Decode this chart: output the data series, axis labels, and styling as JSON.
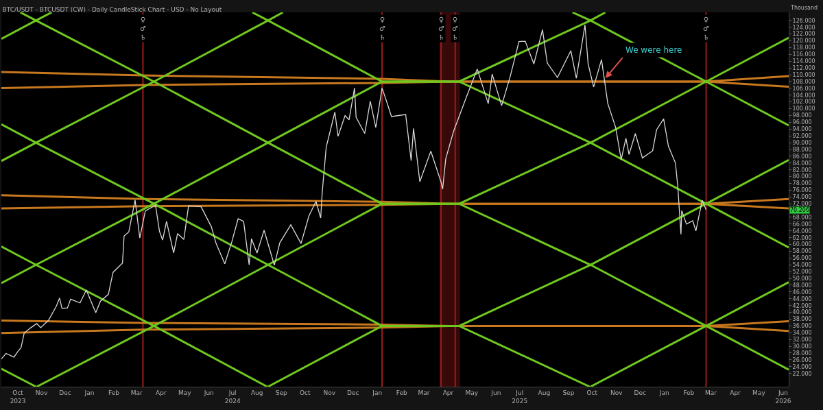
{
  "chart_data": {
    "type": "line",
    "title": "BTC/USDT - BTCUSDT (CW) - Daily CandleStick Chart - USD - No Layout",
    "ylabel": "Thousand",
    "xlim": [
      "2023-09-25",
      "2026-06-22"
    ],
    "ylim": [
      18.1,
      128.4
    ],
    "xticks": [
      {
        "value": "2023-10-16",
        "label": "Oct\n2023"
      },
      {
        "value": "2023-11-15",
        "label": "Nov"
      },
      {
        "value": "2023-12-15",
        "label": "Dec"
      },
      {
        "value": "2024-01-15",
        "label": "Jan"
      },
      {
        "value": "2024-02-15",
        "label": "Feb"
      },
      {
        "value": "2024-03-15",
        "label": "Mar"
      },
      {
        "value": "2024-04-15",
        "label": "Apr"
      },
      {
        "value": "2024-05-15",
        "label": "May"
      },
      {
        "value": "2024-06-15",
        "label": "Jun"
      },
      {
        "value": "2024-07-15",
        "label": "Jul\n2024"
      },
      {
        "value": "2024-08-15",
        "label": "Aug"
      },
      {
        "value": "2024-09-15",
        "label": "Sep"
      },
      {
        "value": "2024-10-15",
        "label": "Oct"
      },
      {
        "value": "2024-11-15",
        "label": "Nov"
      },
      {
        "value": "2024-12-15",
        "label": "Dec"
      },
      {
        "value": "2025-01-15",
        "label": "Jan"
      },
      {
        "value": "2025-02-15",
        "label": "Feb"
      },
      {
        "value": "2025-03-15",
        "label": "Mar"
      },
      {
        "value": "2025-04-15",
        "label": "Apr"
      },
      {
        "value": "2025-05-15",
        "label": "May"
      },
      {
        "value": "2025-06-15",
        "label": "Jun"
      },
      {
        "value": "2025-07-15",
        "label": "Jul\n2025"
      },
      {
        "value": "2025-08-15",
        "label": "Aug"
      },
      {
        "value": "2025-09-15",
        "label": "Sep"
      },
      {
        "value": "2025-10-15",
        "label": "Oct"
      },
      {
        "value": "2025-11-15",
        "label": "Nov"
      },
      {
        "value": "2025-12-15",
        "label": "Dec"
      },
      {
        "value": "2026-01-15",
        "label": "Jan"
      },
      {
        "value": "2026-02-15",
        "label": "Feb"
      },
      {
        "value": "2026-03-15",
        "label": "Mar"
      },
      {
        "value": "2026-04-15",
        "label": "Apr"
      },
      {
        "value": "2026-05-15",
        "label": "May"
      },
      {
        "value": "2026-06-15",
        "label": "Jun\n2026"
      }
    ],
    "yticks": [
      {
        "value": 22,
        "label": "22.000"
      },
      {
        "value": 24,
        "label": "24.000"
      },
      {
        "value": 26,
        "label": "26.000"
      },
      {
        "value": 28,
        "label": "28.000"
      },
      {
        "value": 30,
        "label": "30.000"
      },
      {
        "value": 32,
        "label": "32.000"
      },
      {
        "value": 34,
        "label": "34.000"
      },
      {
        "value": 36,
        "label": "36.000"
      },
      {
        "value": 38,
        "label": "38.000"
      },
      {
        "value": 40,
        "label": "40.000"
      },
      {
        "value": 42,
        "label": "42.000"
      },
      {
        "value": 44,
        "label": "44.000"
      },
      {
        "value": 46,
        "label": "46.000"
      },
      {
        "value": 48,
        "label": "48.000"
      },
      {
        "value": 50,
        "label": "50.000"
      },
      {
        "value": 52,
        "label": "52.000"
      },
      {
        "value": 54,
        "label": "54.000"
      },
      {
        "value": 56,
        "label": "56.000"
      },
      {
        "value": 58,
        "label": "58.000"
      },
      {
        "value": 60,
        "label": "60.000"
      },
      {
        "value": 62,
        "label": "62.000"
      },
      {
        "value": 64,
        "label": "64.000"
      },
      {
        "value": 66,
        "label": "66.000"
      },
      {
        "value": 68,
        "label": "68.000"
      },
      {
        "value": 70,
        "label": null
      },
      {
        "value": 72,
        "label": "72.000"
      },
      {
        "value": 74,
        "label": "74.000"
      },
      {
        "value": 76,
        "label": "76.000"
      },
      {
        "value": 78,
        "label": "78.000"
      },
      {
        "value": 80,
        "label": "80.000"
      },
      {
        "value": 82,
        "label": "82.000"
      },
      {
        "value": 84,
        "label": "84.000"
      },
      {
        "value": 86,
        "label": "86.000"
      },
      {
        "value": 88,
        "label": "88.000"
      },
      {
        "value": 90,
        "label": "90.000"
      },
      {
        "value": 92,
        "label": "92.000"
      },
      {
        "value": 94,
        "label": "94.000"
      },
      {
        "value": 96,
        "label": "96.000"
      },
      {
        "value": 98,
        "label": "98.000"
      },
      {
        "value": 100,
        "label": "100.000"
      },
      {
        "value": 102,
        "label": "102.000"
      },
      {
        "value": 104,
        "label": "104.000"
      },
      {
        "value": 106,
        "label": "106.000"
      },
      {
        "value": 108,
        "label": "108.000"
      },
      {
        "value": 110,
        "label": "110.000"
      },
      {
        "value": 112,
        "label": "112.000"
      },
      {
        "value": 114,
        "label": "114.000"
      },
      {
        "value": 116,
        "label": "116.000"
      },
      {
        "value": 118,
        "label": "118.000"
      },
      {
        "value": 120,
        "label": "120.000"
      },
      {
        "value": 122,
        "label": "122.000"
      },
      {
        "value": 124,
        "label": "124.000"
      },
      {
        "value": 126,
        "label": "126.000"
      }
    ],
    "series": [
      {
        "color": "#d9d9d9",
        "x": [
          "2023-09-25",
          "2023-10-01",
          "2023-10-11",
          "2023-10-16",
          "2023-10-20",
          "2023-10-24",
          "2023-11-01",
          "2023-11-09",
          "2023-11-14",
          "2023-11-24",
          "2023-12-04",
          "2023-12-08",
          "2023-12-11",
          "2023-12-18",
          "2023-12-22",
          "2024-01-03",
          "2024-01-11",
          "2024-01-23",
          "2024-01-29",
          "2024-02-08",
          "2024-02-14",
          "2024-02-26",
          "2024-02-28",
          "2024-03-05",
          "2024-03-13",
          "2024-03-19",
          "2024-03-26",
          "2024-04-08",
          "2024-04-13",
          "2024-04-17",
          "2024-04-22",
          "2024-05-01",
          "2024-05-06",
          "2024-05-14",
          "2024-05-20",
          "2024-06-05",
          "2024-06-18",
          "2024-06-24",
          "2024-07-05",
          "2024-07-14",
          "2024-07-22",
          "2024-07-29",
          "2024-08-05",
          "2024-08-08",
          "2024-08-15",
          "2024-08-24",
          "2024-09-06",
          "2024-09-13",
          "2024-09-27",
          "2024-10-10",
          "2024-10-20",
          "2024-10-29",
          "2024-11-04",
          "2024-11-06",
          "2024-11-11",
          "2024-11-22",
          "2024-11-26",
          "2024-12-05",
          "2024-12-10",
          "2024-12-17",
          "2024-12-19",
          "2024-12-30",
          "2025-01-06",
          "2025-01-13",
          "2025-01-21",
          "2025-01-27",
          "2025-02-02",
          "2025-02-20",
          "2025-02-27",
          "2025-03-02",
          "2025-03-10",
          "2025-03-24",
          "2025-04-06",
          "2025-04-08",
          "2025-04-12",
          "2025-04-22",
          "2025-05-08",
          "2025-05-22",
          "2025-06-05",
          "2025-06-10",
          "2025-06-22",
          "2025-07-03",
          "2025-07-10",
          "2025-07-14",
          "2025-07-22",
          "2025-08-02",
          "2025-08-13",
          "2025-08-19",
          "2025-09-01",
          "2025-09-18",
          "2025-09-25",
          "2025-10-06",
          "2025-10-10",
          "2025-10-17",
          "2025-10-27",
          "2025-11-04",
          "2025-11-14",
          "2025-11-21",
          "2025-11-27",
          "2025-12-01",
          "2025-12-09",
          "2025-12-18",
          "2025-12-31",
          "2026-01-05",
          "2026-01-14",
          "2026-01-20",
          "2026-01-29",
          "2026-02-01",
          "2026-02-05",
          "2026-02-06",
          "2026-02-12",
          "2026-02-20",
          "2026-02-24",
          "2026-03-04",
          "2026-03-09"
        ],
        "values": [
          26.3,
          27.9,
          26.8,
          28.5,
          29.6,
          33.9,
          35.4,
          36.7,
          35.5,
          37.7,
          41.9,
          44.2,
          41.2,
          41.3,
          43.9,
          42.8,
          46.6,
          39.9,
          43.3,
          45.3,
          51.8,
          54.5,
          62.5,
          63.7,
          73.1,
          61.9,
          69.9,
          71.6,
          63.9,
          61.3,
          66.8,
          57.5,
          63.2,
          61.5,
          71.4,
          71.1,
          65.2,
          60.3,
          54.3,
          60.8,
          67.6,
          66.8,
          54.0,
          61.7,
          57.5,
          64.2,
          53.9,
          60.5,
          65.8,
          60.3,
          68.4,
          72.7,
          67.8,
          75.6,
          88.7,
          99.0,
          91.9,
          98.0,
          96.7,
          106.1,
          97.5,
          92.7,
          102.2,
          94.5,
          106.1,
          102.0,
          97.7,
          98.3,
          84.7,
          94.2,
          78.5,
          87.5,
          78.4,
          76.3,
          85.3,
          93.4,
          103.3,
          111.7,
          101.5,
          110.2,
          100.9,
          109.6,
          116.0,
          119.8,
          119.9,
          113.2,
          123.3,
          113.5,
          109.2,
          117.1,
          109.0,
          124.7,
          113.2,
          106.4,
          114.5,
          101.5,
          94.5,
          85.0,
          91.3,
          86.5,
          92.7,
          85.5,
          87.6,
          93.8,
          97.0,
          89.0,
          84.0,
          77.0,
          63.0,
          70.0,
          66.0,
          67.0,
          64.0,
          73.0,
          70.2
        ]
      },
      {
        "color": "#c8781e",
        "x": [
          "2023-09-25",
          "2024-03-23",
          "2025-01-21",
          "2025-04-17",
          "2026-03-09",
          "2026-06-22"
        ],
        "values": [
          110.8,
          109.8,
          108.8,
          108.0,
          108.0,
          109.6
        ]
      },
      {
        "color": "#c8781e",
        "x": [
          "2023-09-25",
          "2024-03-23",
          "2025-01-21",
          "2025-04-17",
          "2026-03-09",
          "2026-06-22"
        ],
        "values": [
          106.1,
          107.0,
          107.6,
          108.0,
          108.0,
          106.5
        ]
      },
      {
        "color": "#c8781e",
        "x": [
          "2023-09-25",
          "2024-03-23",
          "2025-01-21",
          "2025-04-17",
          "2026-03-09",
          "2026-06-22"
        ],
        "values": [
          74.5,
          73.4,
          72.6,
          72.0,
          72.0,
          73.4
        ]
      },
      {
        "color": "#c8781e",
        "x": [
          "2023-09-25",
          "2024-03-23",
          "2025-01-21",
          "2025-04-17",
          "2026-03-09",
          "2026-06-22"
        ],
        "values": [
          70.6,
          71.3,
          71.7,
          72.0,
          72.0,
          70.6
        ]
      },
      {
        "color": "#c8781e",
        "x": [
          "2023-09-25",
          "2024-03-23",
          "2025-01-21",
          "2025-04-17",
          "2026-03-09",
          "2026-06-22"
        ],
        "values": [
          37.6,
          36.9,
          36.4,
          36.0,
          36.0,
          37.4
        ]
      },
      {
        "color": "#c8781e",
        "x": [
          "2023-09-25",
          "2024-03-23",
          "2025-01-21",
          "2025-04-17",
          "2026-03-09",
          "2026-06-22"
        ],
        "values": [
          33.9,
          34.9,
          35.5,
          36.0,
          36.0,
          34.5
        ]
      },
      {
        "color": "#6fc81e",
        "x": [
          "2025-09-20",
          "2025-10-13",
          "2026-03-09",
          "2026-06-22"
        ],
        "values": [
          128.4,
          126,
          108,
          95.1
        ]
      },
      {
        "color": "#6fc81e",
        "x": [
          "2024-08-09",
          "2024-08-29",
          "2025-01-21",
          "2025-04-29",
          "2025-10-13",
          "2026-03-09",
          "2026-06-22"
        ],
        "values": [
          128.4,
          126,
          108,
          108,
          90,
          72,
          59.1
        ]
      },
      {
        "color": "#6fc81e",
        "x": [
          "2023-10-19",
          "2023-11-08",
          "2024-04-06",
          "2024-08-29",
          "2025-01-21",
          "2025-04-29",
          "2025-10-13",
          "2026-03-09",
          "2026-06-22"
        ],
        "values": [
          128.4,
          126,
          108,
          90,
          72,
          72,
          54,
          36,
          23.1
        ]
      },
      {
        "color": "#6fc81e",
        "x": [
          "2023-09-25",
          "2023-11-08",
          "2024-04-06",
          "2024-08-29",
          "2025-01-21",
          "2025-04-29",
          "2025-10-12"
        ],
        "values": [
          95.4,
          90,
          72,
          54,
          36,
          36,
          18.1
        ]
      },
      {
        "color": "#6fc81e",
        "x": [
          "2023-09-25",
          "2023-11-08",
          "2024-04-06",
          "2024-08-28"
        ],
        "values": [
          59.4,
          54,
          36,
          18.1
        ]
      },
      {
        "color": "#6fc81e",
        "x": [
          "2023-09-25",
          "2023-11-08"
        ],
        "values": [
          23.4,
          18.1
        ]
      },
      {
        "color": "#6fc81e",
        "x": [
          "2023-09-25",
          "2023-11-08",
          "2023-11-28"
        ],
        "values": [
          120.6,
          126,
          128.4
        ]
      },
      {
        "color": "#6fc81e",
        "x": [
          "2023-09-25",
          "2023-11-08",
          "2024-04-06",
          "2024-08-29",
          "2024-09-17"
        ],
        "values": [
          84.6,
          90,
          108,
          126,
          128.4
        ]
      },
      {
        "color": "#6fc81e",
        "x": [
          "2023-09-25",
          "2023-11-08",
          "2024-04-06",
          "2024-08-29",
          "2025-01-21",
          "2025-04-29",
          "2025-10-13",
          "2025-11-01"
        ],
        "values": [
          48.6,
          54,
          72,
          90,
          108,
          108,
          126,
          128.4
        ]
      },
      {
        "color": "#6fc81e",
        "x": [
          "2023-11-09",
          "2024-04-06",
          "2024-08-29",
          "2025-01-21",
          "2025-04-29",
          "2025-10-13",
          "2026-03-09",
          "2026-06-22"
        ],
        "values": [
          18.1,
          36,
          54,
          72,
          72,
          90,
          108,
          120.9
        ]
      },
      {
        "color": "#6fc81e",
        "x": [
          "2024-08-29",
          "2025-01-21",
          "2025-04-29",
          "2025-10-13",
          "2026-03-09",
          "2026-06-22"
        ],
        "values": [
          18.1,
          36,
          36,
          54,
          72,
          84.9
        ]
      },
      {
        "color": "#6fc81e",
        "x": [
          "2025-10-13",
          "2026-03-09",
          "2026-06-22"
        ],
        "values": [
          18.1,
          36,
          48.9
        ]
      }
    ],
    "ref_lines": [
      {
        "axis": "x",
        "value": "2024-03-23",
        "label": "♀\n♂\n♄",
        "color": "#9b1c1c"
      },
      {
        "axis": "x",
        "value": "2025-01-21",
        "label": "♀\n♂\n♄",
        "color": "#9b1c1c"
      },
      {
        "axis": "x",
        "value": "2025-04-06",
        "label": "♀\n♂\n♄",
        "color": "#9b1c1c"
      },
      {
        "axis": "x",
        "value": "2025-04-24",
        "label": "♀\n♂\n♄",
        "color": "#9b1c1c"
      },
      {
        "axis": "x",
        "value": "2026-03-09",
        "label": "♀\n♂\n♄",
        "color": "#9b1c1c"
      }
    ],
    "bands": [
      {
        "axis": "x",
        "from": "2025-04-04",
        "to": "2025-04-30",
        "color": "#3d0a0a"
      }
    ],
    "annotations": [
      {
        "text": "We were here",
        "x": "2025-11-01",
        "y": 109
      },
      {
        "text": "70.206",
        "x": "2026-06-22",
        "y": 70.206
      }
    ]
  }
}
